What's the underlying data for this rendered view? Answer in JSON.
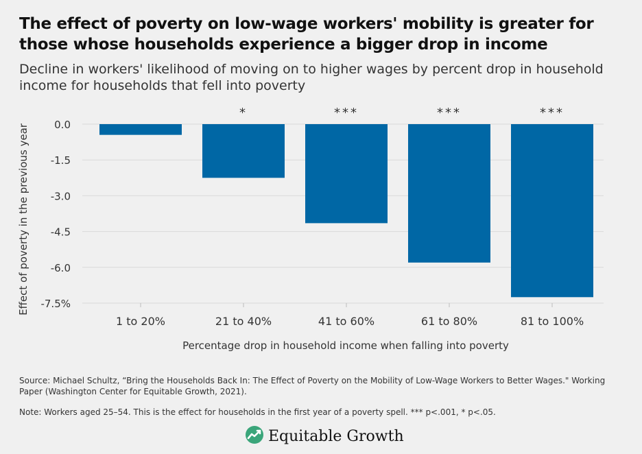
{
  "title": "The effect of poverty on low-wage workers' mobility is greater for those whose households experience a bigger drop in income",
  "subtitle": "Decline in workers' likelihood of moving on to higher wages by percent drop in household income for households that fell into poverty",
  "chart_data": {
    "type": "bar",
    "categories": [
      "1 to 20%",
      "21 to 40%",
      "41 to 60%",
      "61 to 80%",
      "81 to 100%"
    ],
    "values": [
      -0.45,
      -2.25,
      -4.15,
      -5.8,
      -7.25
    ],
    "significance": [
      "",
      "*",
      "***",
      "***",
      "***"
    ],
    "xlabel": "Percentage drop in household income when falling into poverty",
    "ylabel": "Effect of poverty in the previous year",
    "ylim": [
      -7.5,
      0
    ],
    "yticks": [
      0,
      -1.5,
      -3,
      -4.5,
      -6,
      -7.5
    ],
    "ytick_labels": [
      "0.0",
      "-1.5",
      "-3.0",
      "-4.5",
      "-6.0",
      "-7.5%"
    ],
    "bar_color": "#0067a5",
    "grid": true
  },
  "source": "Source: Michael Schultz, “Bring the Households Back In: The Effect of Poverty on the Mobility of Low-Wage Workers to Better Wages.\" Working Paper (Washington Center for Equitable Growth, 2021).",
  "note": "Note: Workers aged 25–54. This is the effect for households in the first year of a poverty spell. *** p<.001, * p<.05.",
  "logo": {
    "text": "Equitable Growth",
    "icon": "equitable-growth-leaf-icon"
  }
}
